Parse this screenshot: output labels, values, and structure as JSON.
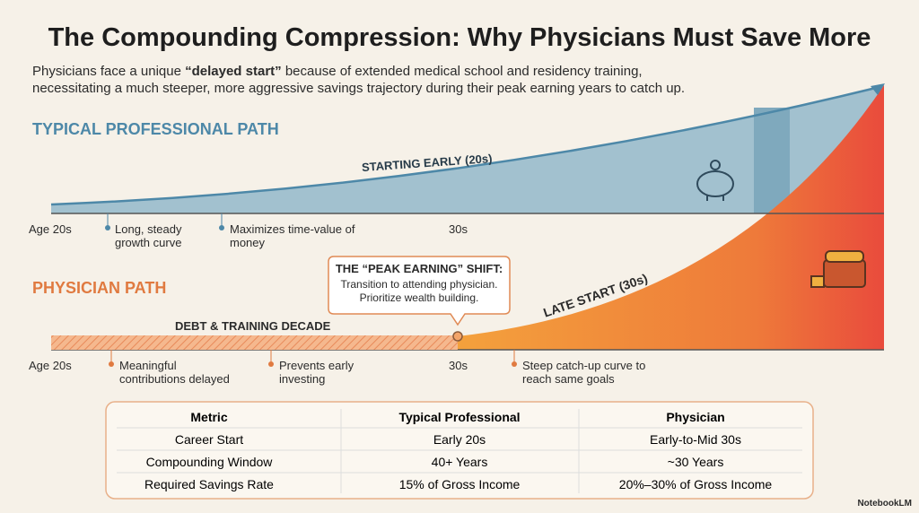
{
  "header": {
    "title": "The Compounding Compression: Why Physicians Must Save More",
    "subtitle": [
      "Physicians face a unique ",
      "“delayed start”",
      " because of extended medical school and residency training, necessitating a much steeper, more aggressive savings trajectory during their peak earning years to catch up."
    ]
  },
  "typical_path": {
    "label": "TYPICAL PROFESSIONAL PATH",
    "curve_label": "STARTING EARLY (20s)",
    "axis": [
      "Age 20s",
      "30s"
    ],
    "notes": [
      "Long, steady growth curve",
      "Maximizes time-value of money"
    ]
  },
  "physician_path": {
    "label": "PHYSICIAN PATH",
    "training_label": "DEBT & TRAINING DECADE",
    "curve_label": "LATE START (30s)",
    "axis": [
      "Age 20s",
      "30s"
    ],
    "notes": [
      "Meaningful contributions delayed",
      "Prevents early investing",
      "Steep catch-up curve to reach same goals"
    ],
    "callout": {
      "title": "THE “PEAK EARNING” SHIFT:",
      "text": "Transition to attending physician. Prioritize wealth building."
    }
  },
  "table": {
    "header": [
      "Metric",
      "Typical Professional",
      "Physician"
    ],
    "rows": [
      [
        "Career Start",
        "Early 20s",
        "Early-to-Mid 30s"
      ],
      [
        "Compounding Window",
        "40+ Years",
        "~30 Years"
      ],
      [
        "Required Savings Rate",
        "15% of Gross Income",
        "20%–30% of Gross Income"
      ]
    ]
  },
  "branding": "NotebookLM"
}
